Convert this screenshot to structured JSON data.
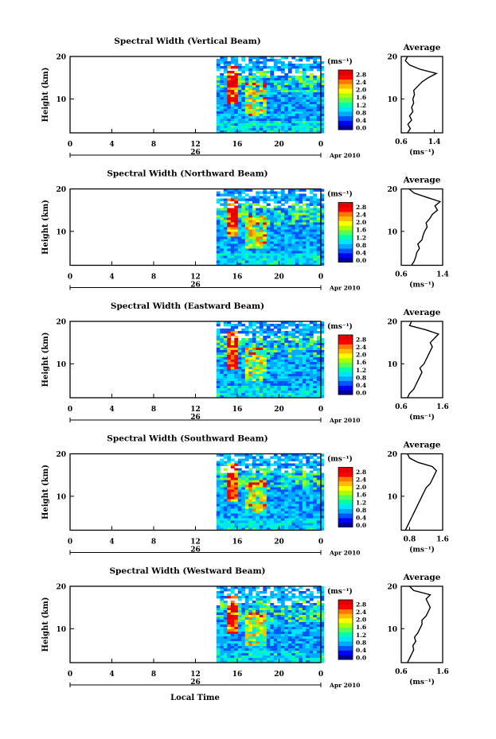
{
  "figure": {
    "xlabel": "Local Time",
    "date_main": "26",
    "date_label": "Apr 2010",
    "colorbar_unit": "(ms⁻¹)",
    "colorbar_ticks": [
      "2.8",
      "2.4",
      "2.0",
      "1.6",
      "1.2",
      "0.8",
      "0.4",
      "0.0"
    ],
    "colorbar_colors": [
      "#000099",
      "#0000ff",
      "#0055ff",
      "#00aaff",
      "#00e5ff",
      "#00ffaa",
      "#55ff55",
      "#aaff00",
      "#ffff00",
      "#ffbb00",
      "#ff7700",
      "#ff0000",
      "#e00000"
    ],
    "average_title": "Average",
    "average_unit": "(ms⁻¹)"
  },
  "chart_data": [
    {
      "type": "heatmap",
      "title": "Spectral Width (Vertical Beam)",
      "ylabel": "Height (km)",
      "xlabel": "",
      "x_ticks": [
        "0",
        "4",
        "8",
        "12",
        "16",
        "20",
        "0"
      ],
      "xlim": [
        0,
        24
      ],
      "y_ticks": [
        "20",
        "10"
      ],
      "ylim": [
        2,
        20
      ],
      "data_start_hour": 14,
      "zlim": [
        0,
        2.8
      ],
      "profile": {
        "title": "Average",
        "xlim": [
          0.6,
          1.6
        ],
        "x_ticks": [
          "0.6",
          "1.4"
        ],
        "y_ticks": [
          "20",
          "10"
        ],
        "heights": [
          2,
          3,
          4,
          5,
          6,
          7,
          8,
          9,
          10,
          11,
          12,
          13,
          14,
          15,
          16,
          17,
          18,
          19,
          20
        ],
        "values": [
          0.75,
          0.82,
          0.76,
          0.85,
          0.8,
          0.88,
          0.85,
          0.9,
          0.88,
          0.92,
          0.9,
          1.0,
          1.1,
          1.25,
          1.45,
          1.05,
          0.8,
          0.7,
          0.75
        ]
      }
    },
    {
      "type": "heatmap",
      "title": "Spectral Width (Northward Beam)",
      "ylabel": "Height (km)",
      "xlabel": "",
      "x_ticks": [
        "0",
        "4",
        "8",
        "12",
        "16",
        "20",
        "0"
      ],
      "xlim": [
        0,
        24
      ],
      "y_ticks": [
        "20",
        "10"
      ],
      "ylim": [
        2,
        20
      ],
      "data_start_hour": 14,
      "zlim": [
        0,
        2.8
      ],
      "profile": {
        "title": "Average",
        "xlim": [
          0.6,
          1.4
        ],
        "x_ticks": [
          "0.6",
          "1.4"
        ],
        "y_ticks": [
          "20",
          "10"
        ],
        "heights": [
          2,
          3,
          4,
          5,
          6,
          7,
          8,
          9,
          10,
          11,
          12,
          13,
          14,
          15,
          16,
          17,
          18,
          19,
          20
        ],
        "values": [
          0.8,
          0.85,
          0.88,
          0.9,
          0.95,
          0.92,
          1.0,
          1.02,
          1.05,
          1.1,
          1.08,
          1.15,
          1.2,
          1.3,
          1.25,
          1.35,
          1.1,
          0.85,
          0.75
        ]
      }
    },
    {
      "type": "heatmap",
      "title": "Spectral Width (Eastward Beam)",
      "ylabel": "Height (km)",
      "xlabel": "",
      "x_ticks": [
        "0",
        "4",
        "8",
        "12",
        "16",
        "20",
        "0"
      ],
      "xlim": [
        0,
        24
      ],
      "y_ticks": [
        "20",
        "10"
      ],
      "ylim": [
        2,
        20
      ],
      "data_start_hour": 14,
      "zlim": [
        0,
        2.8
      ],
      "profile": {
        "title": "Average",
        "xlim": [
          0.6,
          1.6
        ],
        "x_ticks": [
          "0.6",
          "1.6"
        ],
        "y_ticks": [
          "20",
          "10"
        ],
        "heights": [
          2,
          3,
          4,
          5,
          6,
          7,
          8,
          9,
          10,
          11,
          12,
          13,
          14,
          15,
          16,
          17,
          18,
          19,
          20
        ],
        "values": [
          0.75,
          0.8,
          0.9,
          0.95,
          1.0,
          1.05,
          1.1,
          1.05,
          1.15,
          1.2,
          1.25,
          1.3,
          1.35,
          1.3,
          1.4,
          1.5,
          1.2,
          0.8,
          0.85
        ]
      }
    },
    {
      "type": "heatmap",
      "title": "Spectral Width (Southward Beam)",
      "ylabel": "Height (km)",
      "xlabel": "",
      "x_ticks": [
        "0",
        "4",
        "8",
        "12",
        "16",
        "20",
        "0"
      ],
      "xlim": [
        0,
        24
      ],
      "y_ticks": [
        "20",
        "10"
      ],
      "ylim": [
        2,
        20
      ],
      "data_start_hour": 14,
      "zlim": [
        0,
        2.8
      ],
      "profile": {
        "title": "Average",
        "xlim": [
          0.6,
          1.6
        ],
        "x_ticks": [
          "0.8",
          "1.6"
        ],
        "y_ticks": [
          "20",
          "10"
        ],
        "heights": [
          2,
          3,
          4,
          5,
          6,
          7,
          8,
          9,
          10,
          11,
          12,
          13,
          14,
          15,
          16,
          17,
          18,
          19,
          20
        ],
        "values": [
          0.7,
          0.75,
          0.8,
          0.85,
          0.9,
          0.95,
          1.0,
          1.05,
          1.1,
          1.15,
          1.2,
          1.3,
          1.35,
          1.4,
          1.45,
          1.35,
          1.0,
          0.8,
          0.75
        ]
      }
    },
    {
      "type": "heatmap",
      "title": "Spectral Width (Westward Beam)",
      "ylabel": "Height (km)",
      "xlabel": "Local Time",
      "x_ticks": [
        "0",
        "4",
        "8",
        "12",
        "16",
        "20",
        "0"
      ],
      "xlim": [
        0,
        24
      ],
      "y_ticks": [
        "20",
        "10"
      ],
      "ylim": [
        2,
        20
      ],
      "data_start_hour": 14,
      "zlim": [
        0,
        2.8
      ],
      "profile": {
        "title": "Average",
        "xlim": [
          0.6,
          1.6
        ],
        "x_ticks": [
          "0.6",
          "1.6"
        ],
        "y_ticks": [
          "20",
          "10"
        ],
        "heights": [
          2,
          3,
          4,
          5,
          6,
          7,
          8,
          9,
          10,
          11,
          12,
          13,
          14,
          15,
          16,
          17,
          18,
          19,
          20
        ],
        "values": [
          0.75,
          0.8,
          0.85,
          0.9,
          0.88,
          0.95,
          0.92,
          1.0,
          1.05,
          1.1,
          1.1,
          1.2,
          1.25,
          1.3,
          1.25,
          1.2,
          1.3,
          0.9,
          0.8
        ]
      }
    }
  ]
}
